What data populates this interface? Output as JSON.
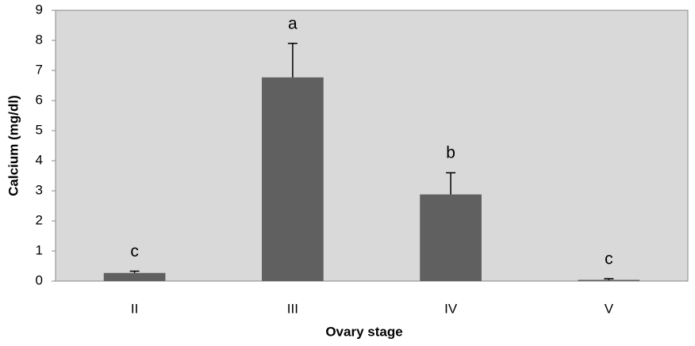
{
  "chart_data": {
    "type": "bar",
    "x_label": "Ovary stage",
    "y_label": "Calcium (mg/dl)",
    "categories": [
      "II",
      "III",
      "IV",
      "V"
    ],
    "values": [
      0.27,
      6.77,
      2.88,
      0.04
    ],
    "errors": [
      0.06,
      1.13,
      0.72,
      0.04
    ],
    "letters": [
      "c",
      "a",
      "b",
      "c"
    ],
    "color": "#606060",
    "background": "#d9d9d9",
    "ylim": [
      0,
      9
    ],
    "yticks": [
      0,
      1,
      2,
      3,
      4,
      5,
      6,
      7,
      8,
      9
    ],
    "grid": false
  }
}
